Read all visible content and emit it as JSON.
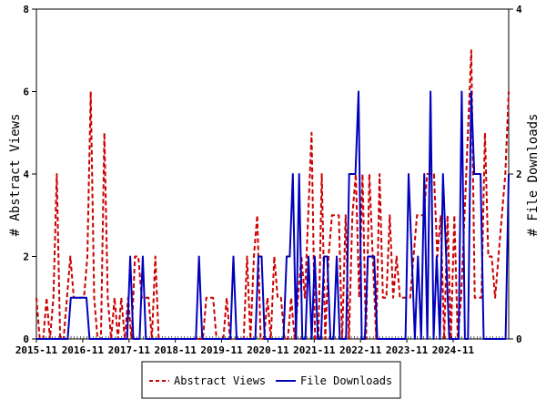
{
  "chart_data": {
    "type": "line",
    "x_labels": [
      "2015-11",
      "2016-11",
      "2017-11",
      "2018-11",
      "2019-11",
      "2020-11",
      "2021-11",
      "2022-11",
      "2023-11",
      "2024-11"
    ],
    "y_left": {
      "label": "# Abstract Views",
      "ylim": [
        0,
        8
      ],
      "ticks": [
        "0",
        "2",
        "4",
        "6",
        "8"
      ]
    },
    "y_right": {
      "label": "# File Downloads",
      "ylim": [
        0,
        4
      ],
      "ticks": [
        "0",
        "2",
        "4"
      ]
    },
    "series": [
      {
        "name": "Abstract Views",
        "axis": "left",
        "color": "#cc0000",
        "style": "dashed",
        "values": [
          1,
          0,
          0,
          1,
          0,
          1,
          4,
          0,
          0,
          1,
          2,
          1,
          1,
          1,
          1,
          2,
          6,
          1,
          0,
          0,
          5,
          1,
          0,
          1,
          0,
          1,
          0,
          1,
          0,
          2,
          2,
          1,
          1,
          1,
          0,
          2,
          0,
          0,
          0,
          0,
          0,
          0,
          0,
          0,
          0,
          0,
          0,
          0,
          0,
          0,
          1,
          1,
          1,
          0,
          0,
          0,
          1,
          0,
          0,
          0,
          0,
          0,
          2,
          0,
          2,
          3,
          0,
          0,
          1,
          0,
          2,
          1,
          1,
          0,
          0,
          1,
          0,
          1,
          2,
          1,
          3,
          5,
          0,
          0,
          4,
          0,
          2,
          3,
          3,
          3,
          0,
          3,
          0,
          3,
          4,
          1,
          4,
          0,
          4,
          2,
          0,
          4,
          1,
          1,
          3,
          1,
          2,
          1,
          1,
          1,
          1,
          2,
          3,
          3,
          3,
          4,
          4,
          4,
          2,
          3,
          0,
          3,
          0,
          3,
          0,
          1,
          3,
          5,
          7,
          1,
          1,
          1,
          5,
          2,
          2,
          1,
          2,
          3,
          4,
          6
        ]
      },
      {
        "name": "File Downloads",
        "axis": "right",
        "color": "#0000bb",
        "style": "solid",
        "values": [
          0,
          0,
          0,
          0,
          0,
          0,
          0,
          0,
          0,
          0,
          0,
          0.5,
          0.5,
          0.5,
          0.5,
          0.5,
          0.5,
          0,
          0,
          0,
          0,
          0,
          0,
          0,
          0,
          0,
          0,
          0,
          0,
          0,
          1,
          0,
          0,
          0,
          1,
          0,
          0,
          0,
          0,
          0,
          0,
          0,
          0,
          0,
          0,
          0,
          0,
          0,
          0,
          0,
          0,
          0,
          1,
          0,
          0,
          0,
          0,
          0,
          0,
          0,
          0,
          0,
          0,
          1,
          0,
          0,
          0,
          0,
          0,
          0,
          0,
          1,
          1,
          0,
          0,
          0,
          0,
          0,
          0,
          0,
          1,
          1,
          2,
          0,
          2,
          0,
          0,
          1,
          0,
          1,
          0,
          0,
          1,
          1,
          0,
          0,
          1,
          0,
          0,
          0,
          2,
          2,
          2,
          3,
          0,
          0,
          1,
          1,
          1,
          0,
          0,
          0,
          0,
          0,
          0,
          0,
          0,
          0,
          0,
          2,
          1,
          0,
          1,
          0,
          2,
          0,
          3,
          0,
          1,
          0,
          2,
          1,
          0,
          0,
          0,
          0,
          3,
          0,
          0,
          3,
          2,
          2,
          2,
          0,
          0,
          0,
          0,
          0,
          0,
          0,
          0,
          2
        ]
      }
    ],
    "legend": {
      "placement": "bottom-center"
    },
    "grid": false
  }
}
